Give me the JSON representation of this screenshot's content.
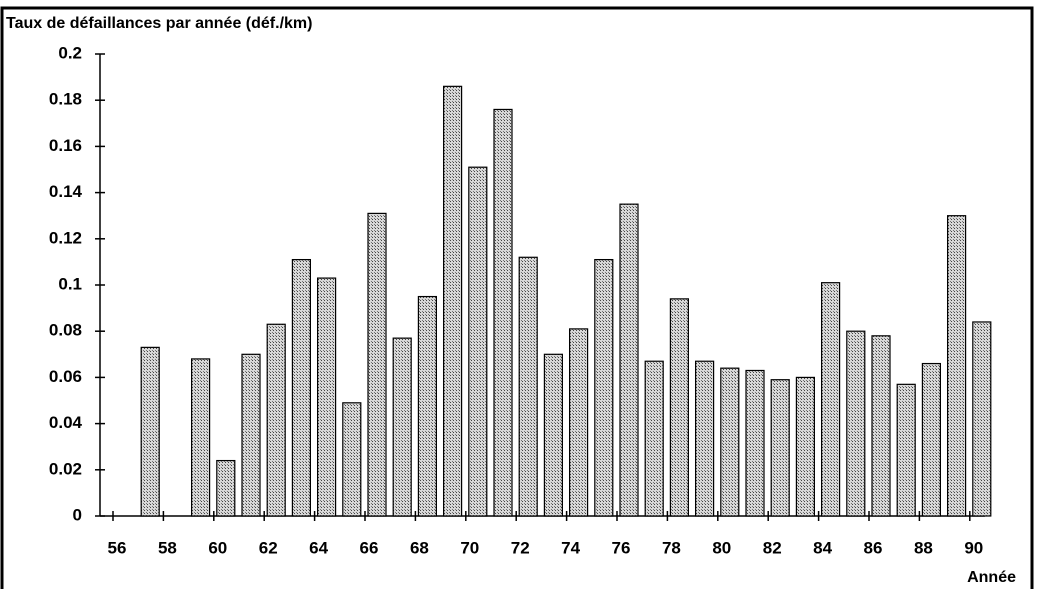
{
  "chart_data": {
    "type": "bar",
    "title": "Taux de défaillances par année (déf./km)",
    "x_label": "Année",
    "categories": [
      "56",
      null,
      "58",
      null,
      "60",
      null,
      "62",
      null,
      "64",
      null,
      "66",
      null,
      "68",
      null,
      "70",
      null,
      "72",
      null,
      "74",
      null,
      "76",
      null,
      "78",
      null,
      "80",
      null,
      "82",
      null,
      "84",
      null,
      "86",
      null,
      "88",
      null,
      "90"
    ],
    "values": [
      null,
      0.073,
      null,
      0.068,
      0.024,
      0.07,
      0.083,
      0.111,
      0.103,
      0.049,
      0.131,
      0.077,
      0.095,
      0.186,
      0.151,
      0.176,
      0.112,
      0.07,
      0.081,
      0.111,
      0.135,
      0.067,
      0.094,
      0.067,
      0.064,
      0.063,
      0.059,
      0.06,
      0.101,
      0.08,
      0.078,
      0.057,
      0.066,
      0.13,
      0.084
    ],
    "color": "#b8b8b8",
    "ylim": [
      0,
      0.2
    ],
    "yticks": [
      0,
      0.02,
      0.04,
      0.06,
      0.08,
      0.1,
      0.12,
      0.14,
      0.16,
      0.18,
      0.2
    ]
  }
}
